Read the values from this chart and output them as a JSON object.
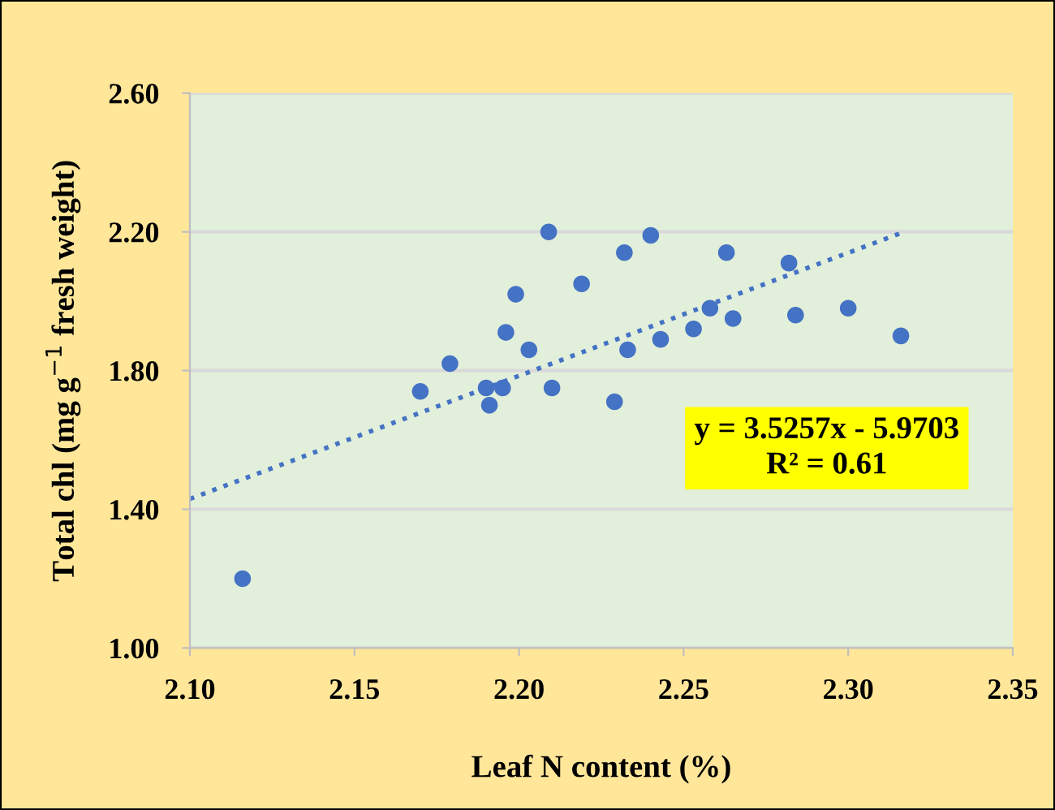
{
  "chart_data": {
    "type": "scatter",
    "xlabel": "Leaf N content (%)",
    "ylabel": "Total chl (mg g$^{−1}$ fresh weight)",
    "xlim": [
      2.1,
      2.35
    ],
    "xticks": [
      {
        "value": 2.1,
        "label": "2.10"
      },
      {
        "value": 2.15,
        "label": "2.15"
      },
      {
        "value": 2.2,
        "label": "2.20"
      },
      {
        "value": 2.25,
        "label": "2.25"
      },
      {
        "value": 2.3,
        "label": "2.30"
      },
      {
        "value": 2.35,
        "label": "2.35"
      }
    ],
    "ylim": [
      1.0,
      2.6
    ],
    "yticks": [
      {
        "value": 1.0,
        "label": "1.00"
      },
      {
        "value": 1.4,
        "label": "1.40"
      },
      {
        "value": 1.8,
        "label": "1.80"
      },
      {
        "value": 2.2,
        "label": "2.20"
      },
      {
        "value": 2.6,
        "label": "2.60"
      }
    ],
    "grid": "y",
    "legend": false,
    "marker": "circle",
    "series": [
      {
        "color": "#4472c4",
        "x": [
          2.116,
          2.17,
          2.179,
          2.19,
          2.191,
          2.195,
          2.196,
          2.199,
          2.203,
          2.209,
          2.21,
          2.219,
          2.229,
          2.232,
          2.233,
          2.24,
          2.243,
          2.253,
          2.258,
          2.263,
          2.265,
          2.282,
          2.284,
          2.3,
          2.316
        ],
        "values": [
          1.2,
          1.74,
          1.82,
          1.75,
          1.7,
          1.75,
          1.91,
          2.02,
          1.86,
          2.2,
          1.75,
          2.05,
          1.71,
          2.14,
          1.86,
          2.19,
          1.89,
          1.92,
          1.98,
          2.14,
          1.95,
          2.11,
          1.96,
          1.98,
          1.9
        ]
      },
      {
        "type": "line",
        "color": "#4472c4",
        "line_style": "dotted",
        "marker": "none",
        "x": [
          2.1,
          2.317
        ],
        "values": [
          1.43,
          2.2
        ]
      }
    ],
    "annotations": [
      "y = 3.5257x - 5.9703\nR² = 0.61"
    ]
  }
}
